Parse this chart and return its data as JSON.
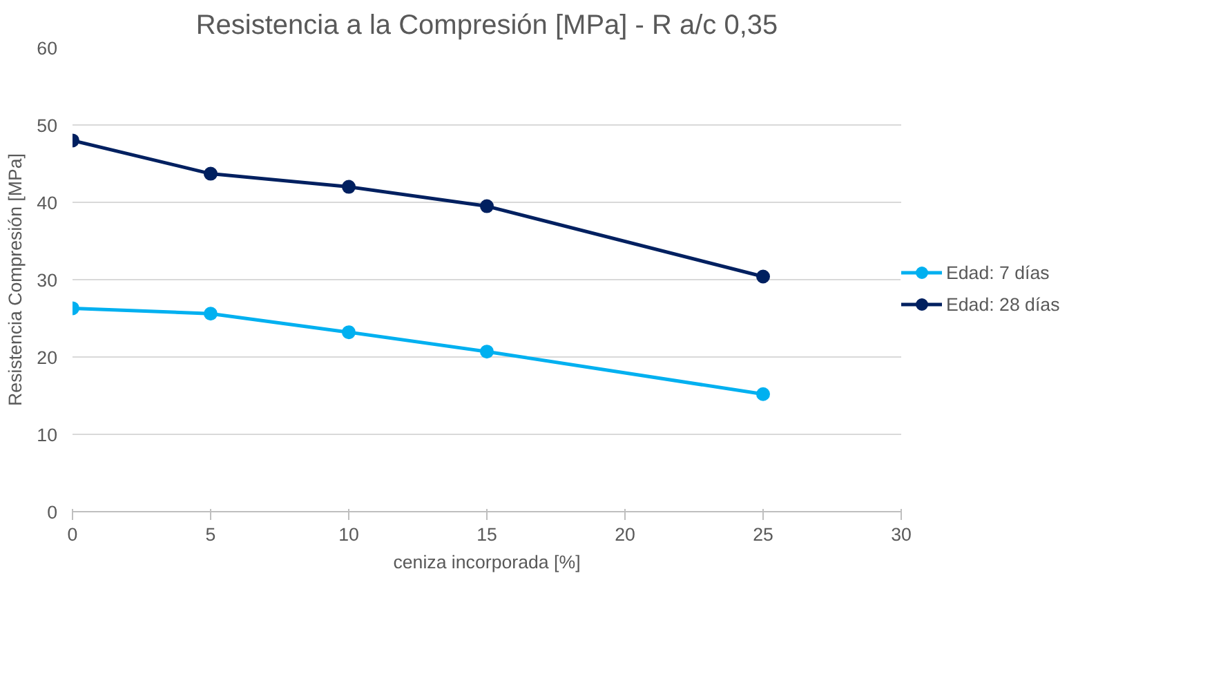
{
  "chart_data": {
    "type": "line",
    "title": "Resistencia a la Compresión [MPa] - R a/c 0,35",
    "xlabel": "ceniza incorporada [%]",
    "ylabel": "Resistencia Compresión [MPa]",
    "x": [
      0,
      5,
      10,
      15,
      25
    ],
    "series": [
      {
        "name": "Edad: 7 días",
        "color": "#00b0f0",
        "values": [
          26.3,
          25.6,
          23.2,
          20.7,
          15.2
        ]
      },
      {
        "name": "Edad: 28 días",
        "color": "#002060",
        "values": [
          48.0,
          43.7,
          42.0,
          39.5,
          30.4
        ]
      }
    ],
    "xlim": [
      0,
      30
    ],
    "xticks": [
      0,
      5,
      10,
      15,
      20,
      25,
      30
    ],
    "ylim": [
      0,
      60
    ],
    "yticks": [
      0,
      10,
      20,
      30,
      40,
      50,
      60
    ],
    "grid": "y",
    "legend": "right",
    "marker": "circle",
    "line_style": "solid"
  }
}
